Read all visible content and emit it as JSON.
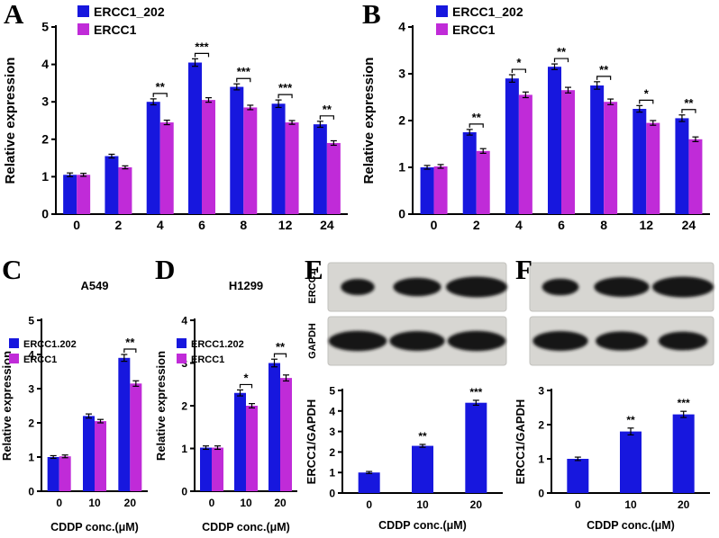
{
  "colors": {
    "series1": "#1717de",
    "series2": "#c02bd8"
  },
  "panel_letters": [
    "A",
    "B",
    "C",
    "D",
    "E",
    "F"
  ],
  "chart_data": [
    {
      "panel": "A",
      "type": "bar",
      "ylabel": "Relative expression",
      "ylim": [
        0,
        5
      ],
      "yticks": [
        0,
        1,
        2,
        3,
        4,
        5
      ],
      "categories": [
        "0",
        "2",
        "4",
        "6",
        "8",
        "12",
        "24"
      ],
      "legend": [
        "ERCC1_202",
        "ERCC1"
      ],
      "series": [
        {
          "name": "ERCC1_202",
          "values": [
            1.05,
            1.55,
            3.0,
            4.05,
            3.4,
            2.95,
            2.4
          ],
          "errors": [
            0.05,
            0.05,
            0.08,
            0.1,
            0.08,
            0.1,
            0.08
          ]
        },
        {
          "name": "ERCC1",
          "values": [
            1.05,
            1.25,
            2.45,
            3.05,
            2.85,
            2.45,
            1.9
          ],
          "errors": [
            0.04,
            0.04,
            0.06,
            0.06,
            0.06,
            0.05,
            0.06
          ]
        }
      ],
      "significance": [
        {
          "cat": 2,
          "label": "**"
        },
        {
          "cat": 3,
          "label": "***"
        },
        {
          "cat": 4,
          "label": "***"
        },
        {
          "cat": 5,
          "label": "***"
        },
        {
          "cat": 6,
          "label": "**"
        }
      ]
    },
    {
      "panel": "B",
      "type": "bar",
      "ylabel": "Relative expression",
      "ylim": [
        0,
        4
      ],
      "yticks": [
        0,
        1,
        2,
        3,
        4
      ],
      "categories": [
        "0",
        "2",
        "4",
        "6",
        "8",
        "12",
        "24"
      ],
      "legend": [
        "ERCC1_202",
        "ERCC1"
      ],
      "series": [
        {
          "name": "ERCC1_202",
          "values": [
            1.0,
            1.75,
            2.9,
            3.15,
            2.75,
            2.25,
            2.05
          ],
          "errors": [
            0.04,
            0.06,
            0.08,
            0.06,
            0.08,
            0.07,
            0.07
          ]
        },
        {
          "name": "ERCC1",
          "values": [
            1.02,
            1.35,
            2.55,
            2.65,
            2.4,
            1.95,
            1.6
          ],
          "errors": [
            0.04,
            0.05,
            0.06,
            0.06,
            0.06,
            0.05,
            0.05
          ]
        }
      ],
      "significance": [
        {
          "cat": 1,
          "label": "**"
        },
        {
          "cat": 2,
          "label": "*"
        },
        {
          "cat": 3,
          "label": "**"
        },
        {
          "cat": 4,
          "label": "**"
        },
        {
          "cat": 5,
          "label": "*"
        },
        {
          "cat": 6,
          "label": "**"
        }
      ]
    },
    {
      "panel": "C",
      "type": "bar",
      "title": "A549",
      "ylabel": "Relative expression",
      "xlabel": "CDDP conc.(μM)",
      "ylim": [
        0,
        5
      ],
      "yticks": [
        0,
        1,
        2,
        3,
        4,
        5
      ],
      "categories": [
        "0",
        "10",
        "20"
      ],
      "legend": [
        "ERCC1.202",
        "ERCC1"
      ],
      "series": [
        {
          "name": "ERCC1.202",
          "values": [
            1.0,
            2.2,
            3.9
          ],
          "errors": [
            0.04,
            0.06,
            0.1
          ]
        },
        {
          "name": "ERCC1",
          "values": [
            1.02,
            2.05,
            3.15
          ],
          "errors": [
            0.04,
            0.05,
            0.08
          ]
        }
      ],
      "significance": [
        {
          "cat": 2,
          "label": "**"
        }
      ]
    },
    {
      "panel": "D",
      "type": "bar",
      "title": "H1299",
      "ylabel": "Relative expression",
      "xlabel": "CDDP conc.(μM)",
      "ylim": [
        0,
        4
      ],
      "yticks": [
        0,
        1,
        2,
        3,
        4
      ],
      "categories": [
        "0",
        "10",
        "20"
      ],
      "legend": [
        "ERCC1.202",
        "ERCC1"
      ],
      "series": [
        {
          "name": "ERCC1.202",
          "values": [
            1.02,
            2.3,
            3.0
          ],
          "errors": [
            0.04,
            0.07,
            0.09
          ]
        },
        {
          "name": "ERCC1",
          "values": [
            1.02,
            2.0,
            2.65
          ],
          "errors": [
            0.04,
            0.05,
            0.07
          ]
        }
      ],
      "significance": [
        {
          "cat": 1,
          "label": "*"
        },
        {
          "cat": 2,
          "label": "**"
        }
      ]
    },
    {
      "panel": "E",
      "type": "bar",
      "ylabel": "ERCC1/GAPDH",
      "xlabel": "CDDP conc.(μM)",
      "ylim": [
        0,
        5
      ],
      "yticks": [
        0,
        1,
        2,
        3,
        4,
        5
      ],
      "categories": [
        "0",
        "10",
        "20"
      ],
      "series": [
        {
          "name": "ERCC1/GAPDH",
          "values": [
            1.0,
            2.3,
            4.4
          ],
          "errors": [
            0.05,
            0.07,
            0.12
          ]
        }
      ],
      "significance": [
        {
          "cat": 1,
          "label": "**"
        },
        {
          "cat": 2,
          "label": "***"
        }
      ]
    },
    {
      "panel": "F",
      "type": "bar",
      "ylabel": "ERCC1/GAPDH",
      "xlabel": "CDDP conc.(μM)",
      "ylim": [
        0,
        3
      ],
      "yticks": [
        0,
        1,
        2,
        3
      ],
      "categories": [
        "0",
        "10",
        "20"
      ],
      "series": [
        {
          "name": "ERCC1/GAPDH",
          "values": [
            1.0,
            1.8,
            2.3
          ],
          "errors": [
            0.05,
            0.1,
            0.09
          ]
        }
      ],
      "significance": [
        {
          "cat": 1,
          "label": "**"
        },
        {
          "cat": 2,
          "label": "***"
        }
      ]
    }
  ],
  "blots": {
    "E": {
      "rows": [
        {
          "label": "ERCC1",
          "bands": [
            0.55,
            0.78,
            1.0
          ]
        },
        {
          "label": "GAPDH",
          "bands": [
            0.95,
            0.9,
            0.95
          ]
        }
      ]
    },
    "F": {
      "rows": [
        {
          "label": "",
          "bands": [
            0.6,
            0.9,
            1.0
          ]
        },
        {
          "label": "",
          "bands": [
            0.9,
            0.85,
            0.8
          ]
        }
      ]
    }
  }
}
